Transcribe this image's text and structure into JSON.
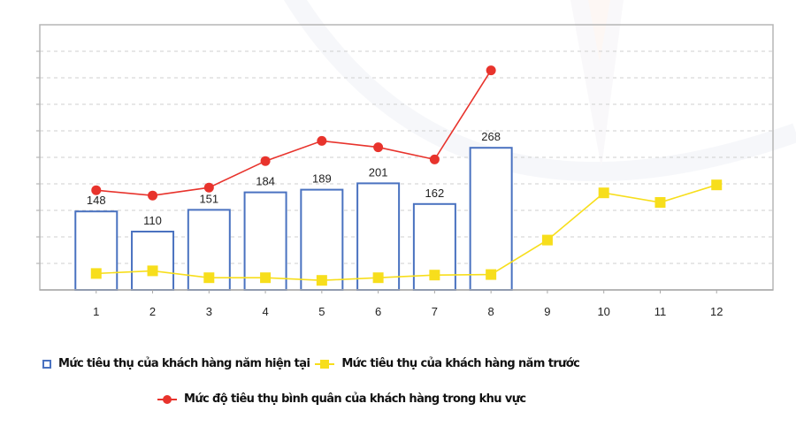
{
  "chart_data": {
    "type": "bar+line",
    "title": "",
    "xlabel": "",
    "ylabel": "",
    "categories": [
      "1",
      "2",
      "3",
      "4",
      "5",
      "6",
      "7",
      "8",
      "9",
      "10",
      "11",
      "12"
    ],
    "ylim": [
      0,
      500
    ],
    "y_grid_step": 50,
    "grid": true,
    "y_tick_labels_shown": false,
    "legend_position": "bottom",
    "series": [
      {
        "name": "Mức tiêu thụ của khách hàng năm hiện tại",
        "type": "bar",
        "color": "#4a72c0",
        "fill": "#ffffff",
        "values": [
          148,
          110,
          151,
          184,
          189,
          201,
          162,
          268,
          null,
          null,
          null,
          null
        ],
        "data_labels": [
          "148",
          "110",
          "151",
          "184",
          "189",
          "201",
          "162",
          "268"
        ]
      },
      {
        "name": "Mức tiêu thụ của khách hàng năm trước",
        "type": "line",
        "marker": "square",
        "color": "#f7de1c",
        "values": [
          31,
          36,
          23,
          23,
          18,
          23,
          28,
          29,
          94,
          183,
          165,
          198
        ]
      },
      {
        "name": "Mức độ tiêu thụ bình quân của khách hàng trong khu vực",
        "type": "line",
        "marker": "circle",
        "color": "#e8332c",
        "values": [
          188,
          178,
          193,
          243,
          281,
          269,
          246,
          414,
          null,
          null,
          null,
          null
        ]
      }
    ]
  },
  "legend": {
    "items": [
      {
        "label": "Mức tiêu thụ của khách hàng năm hiện tại",
        "marker": "bar-outline"
      },
      {
        "label": "Mức tiêu thụ của khách hàng năm trước",
        "marker": "yellow-square-line"
      },
      {
        "label": "Mức độ tiêu thụ bình quân của khách hàng trong khu vực",
        "marker": "red-circle-line"
      }
    ]
  },
  "colors": {
    "bar_stroke": "#4a72c0",
    "prev_year_line": "#f7de1c",
    "region_avg_line": "#e8332c",
    "grid": "#cfcfcf",
    "axis": "#a9a9a9"
  }
}
